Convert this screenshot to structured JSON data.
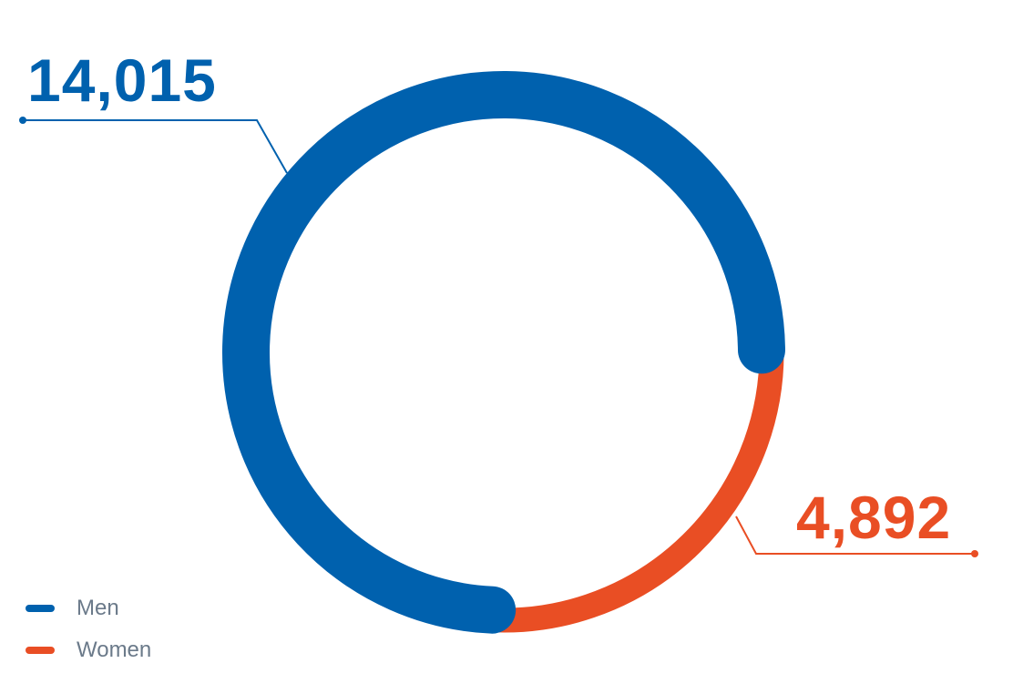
{
  "chart_data": {
    "type": "pie",
    "variant": "donut",
    "series": [
      {
        "name": "Men",
        "value": 14015,
        "label": "14,015",
        "color": "#0061ae"
      },
      {
        "name": "Women",
        "value": 4892,
        "label": "4,892",
        "color": "#e94e24"
      }
    ],
    "legend_position": "bottom-left"
  }
}
